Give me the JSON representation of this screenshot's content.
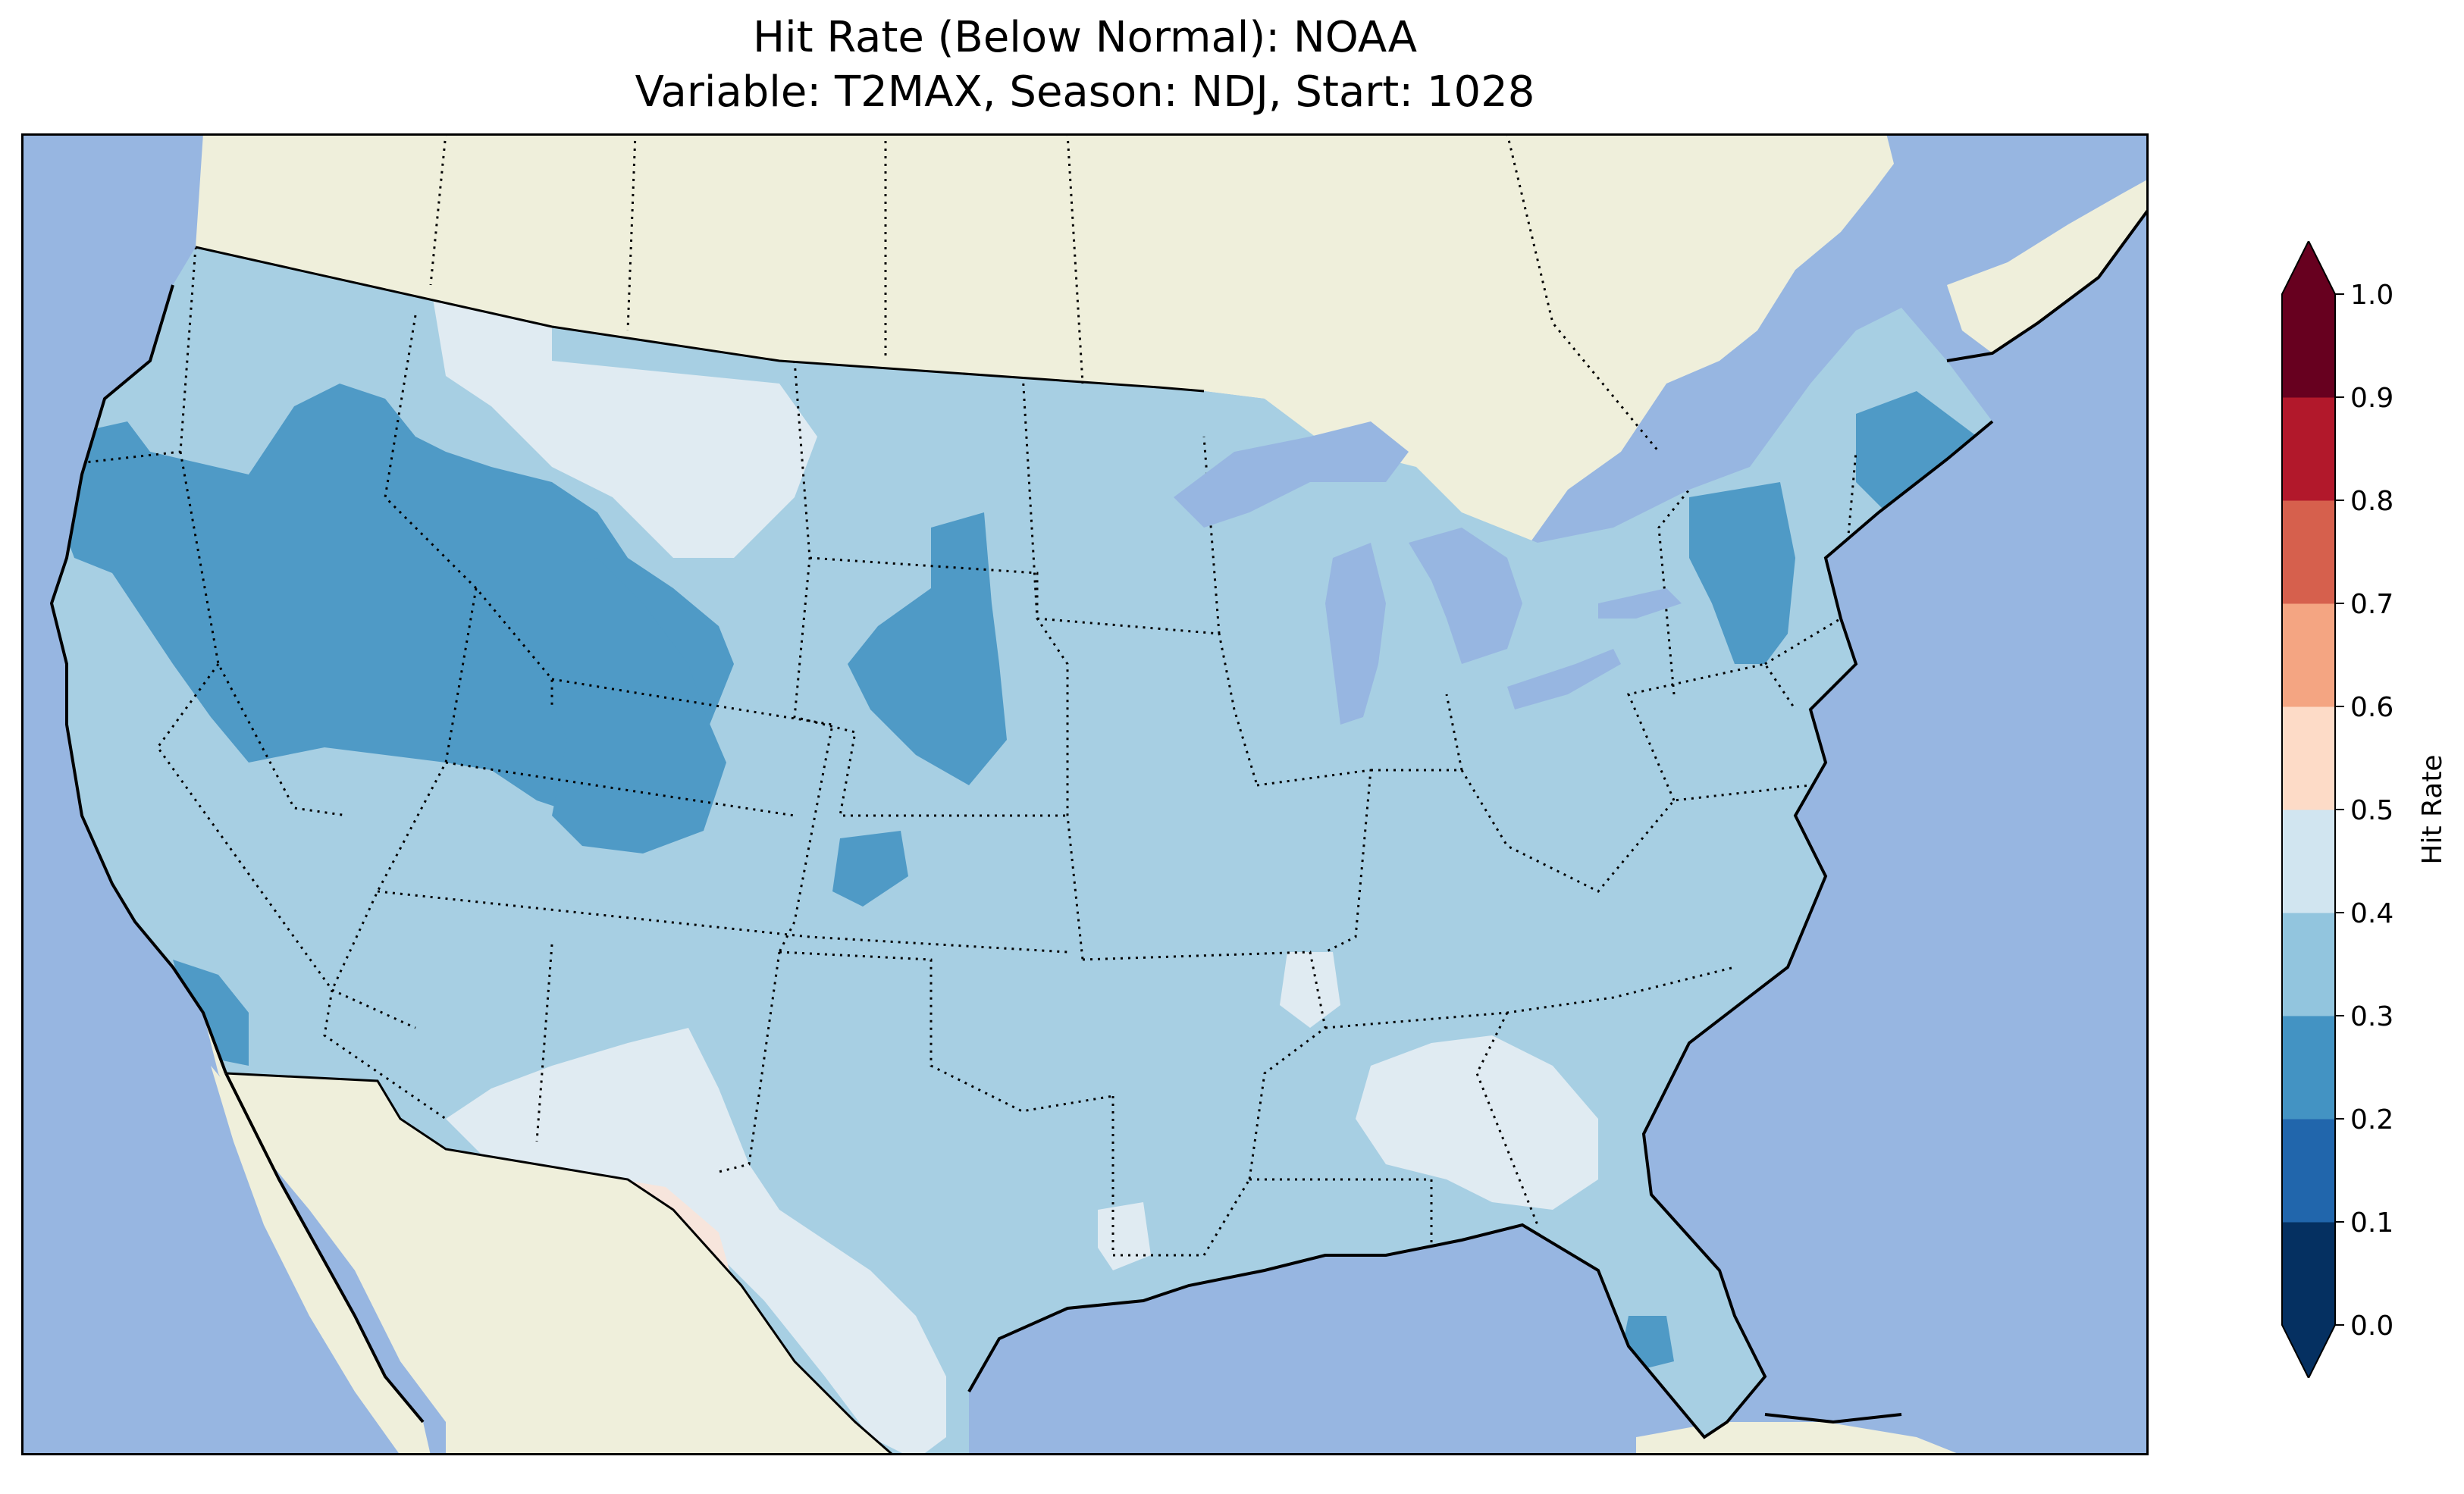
{
  "title": {
    "line1": "Hit Rate (Below Normal): NOAA",
    "line2": "Variable: T2MAX, Season: NDJ, Start: 1028"
  },
  "colors": {
    "ocean": "#97b6e1",
    "land": "#efefdb",
    "class_02_03": "#4f9ac6",
    "class_03_04": "#a7cfe3",
    "class_04_05": "#e0ebf2",
    "class_05_06": "#f7e5dc"
  },
  "map": {
    "type": "choropleth",
    "variable": "T2MAX",
    "season": "NDJ",
    "start": "1028",
    "regions": [
      {
        "name": "northwest-and-great-basin",
        "class": "0.2-0.3"
      },
      {
        "name": "rockies",
        "class": "0.2-0.3"
      },
      {
        "name": "south-dakota-west-central",
        "class": "0.2-0.3"
      },
      {
        "name": "pennsylvania-new-york",
        "class": "0.2-0.3"
      },
      {
        "name": "maine-coast",
        "class": "0.2-0.3"
      },
      {
        "name": "southern-california",
        "class": "0.2-0.3"
      },
      {
        "name": "florida-southwest",
        "class": "0.2-0.3"
      },
      {
        "name": "montana-north",
        "class": "0.4-0.5"
      },
      {
        "name": "new-mexico-west-texas",
        "class": "0.4-0.5"
      },
      {
        "name": "alabama-georgia",
        "class": "0.4-0.5"
      },
      {
        "name": "south-texas",
        "class": "0.4-0.5"
      },
      {
        "name": "big-bend-texas",
        "class": "0.5-0.6"
      },
      {
        "name": "rest-of-conus",
        "class": "0.3-0.4"
      }
    ]
  },
  "colorbar": {
    "label": "Hit Rate",
    "ticks": [
      "0.0",
      "0.1",
      "0.2",
      "0.3",
      "0.4",
      "0.5",
      "0.6",
      "0.7",
      "0.8",
      "0.9",
      "1.0"
    ],
    "colors": [
      "#053061",
      "#2166ac",
      "#4393c3",
      "#92c5de",
      "#d1e5f0",
      "#fddbc7",
      "#f4a582",
      "#d6604d",
      "#b2182b",
      "#67001f"
    ],
    "under_color": "#053061",
    "over_color": "#67001f",
    "extend": "both"
  }
}
